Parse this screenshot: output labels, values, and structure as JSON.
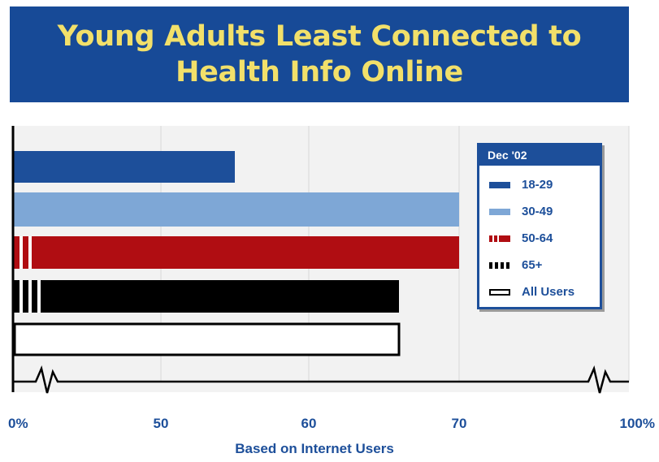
{
  "header": {
    "title_line1": "Young Adults Least Connected to",
    "title_line2": "Health Info Online"
  },
  "colors": {
    "title_bg": "#174a97",
    "title_text": "#f2e06a",
    "axis_text": "#1d4f9a",
    "plot_bg": "#f2f2f2"
  },
  "chart_data": {
    "type": "bar",
    "orientation": "horizontal",
    "title": "Young Adults Least Connected to Health Info Online",
    "xlabel": "Based on Internet Users",
    "ticks": [
      {
        "label": "0%",
        "value": 0
      },
      {
        "label": "50",
        "value": 50
      },
      {
        "label": "60",
        "value": 60
      },
      {
        "label": "70",
        "value": 70
      },
      {
        "label": "100%",
        "value": 100
      }
    ],
    "axis_break": "between 0 and 50, and between 70 and 100",
    "legend_title": "Dec '02",
    "legend_position": "top-right",
    "grid": true,
    "series": [
      {
        "name": "18-29",
        "value": 55,
        "color": "#1d4f9a",
        "pattern": "solid"
      },
      {
        "name": "30-49",
        "value": 70,
        "color": "#7ea7d6",
        "pattern": "solid"
      },
      {
        "name": "50-64",
        "value": 70,
        "color": "#b00d12",
        "pattern": "striped-start"
      },
      {
        "name": "65+",
        "value": 66,
        "color": "#000000",
        "pattern": "striped-start"
      },
      {
        "name": "All Users",
        "value": 66,
        "color": "#ffffff",
        "pattern": "outline"
      }
    ]
  }
}
